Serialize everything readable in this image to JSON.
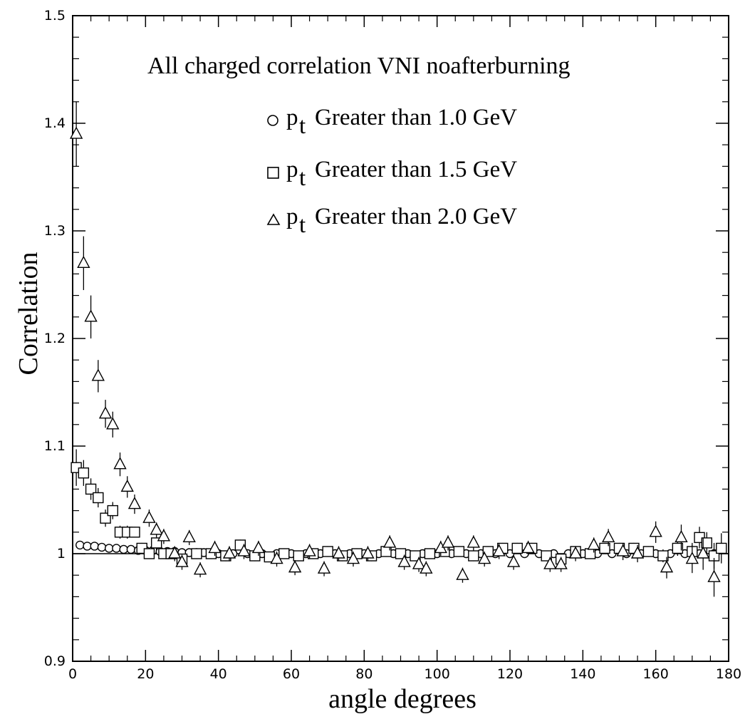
{
  "chart_data": {
    "type": "scatter",
    "title": "All charged correlation VNI noafterburning",
    "xlabel": "angle degrees",
    "ylabel": "Correlation",
    "xlim": [
      0,
      180
    ],
    "ylim": [
      0.9,
      1.5
    ],
    "x_ticks": [
      "0",
      "20",
      "40",
      "60",
      "80",
      "100",
      "120",
      "140",
      "160",
      "180"
    ],
    "y_ticks": [
      "0.9",
      "1",
      "1.1",
      "1.2",
      "1.3",
      "1.4",
      "1.5"
    ],
    "reference_line_y": 1.0,
    "grid": false,
    "legend_position": "top-right",
    "series": [
      {
        "name": "Greater than 1.0 GeV",
        "legend_prefix": "p",
        "legend_subscript": "t",
        "marker": "circle",
        "points": [
          [
            2,
            1.008
          ],
          [
            4,
            1.007
          ],
          [
            6,
            1.007
          ],
          [
            8,
            1.006
          ],
          [
            10,
            1.005
          ],
          [
            12,
            1.005
          ],
          [
            14,
            1.004
          ],
          [
            16,
            1.004
          ],
          [
            18,
            1.003
          ],
          [
            20,
            1.003
          ],
          [
            22,
            1.003
          ],
          [
            24,
            1.002
          ],
          [
            26,
            1.002
          ],
          [
            28,
            1.002
          ],
          [
            30,
            1.001
          ],
          [
            32,
            1.001
          ],
          [
            34,
            1.001
          ],
          [
            36,
            1.001
          ],
          [
            38,
            1.0
          ],
          [
            40,
            1.0
          ],
          [
            44,
            1.0
          ],
          [
            48,
            1.0
          ],
          [
            52,
            1.0
          ],
          [
            56,
            1.0
          ],
          [
            60,
            1.0
          ],
          [
            64,
            1.0
          ],
          [
            68,
            1.0
          ],
          [
            72,
            1.0
          ],
          [
            76,
            1.0
          ],
          [
            80,
            1.0
          ],
          [
            84,
            1.0
          ],
          [
            88,
            1.0
          ],
          [
            92,
            1.0
          ],
          [
            96,
            1.0
          ],
          [
            100,
            1.0
          ],
          [
            104,
            1.0
          ],
          [
            108,
            1.0
          ],
          [
            112,
            1.0
          ],
          [
            116,
            1.0
          ],
          [
            120,
            1.0
          ],
          [
            124,
            1.0
          ],
          [
            128,
            1.0
          ],
          [
            132,
            1.0
          ],
          [
            136,
            1.0
          ],
          [
            140,
            1.0
          ],
          [
            144,
            1.0
          ],
          [
            148,
            1.0
          ],
          [
            152,
            1.0
          ],
          [
            156,
            1.0
          ],
          [
            160,
            1.0
          ],
          [
            164,
            1.0
          ],
          [
            168,
            1.0
          ],
          [
            172,
            1.0
          ],
          [
            176,
            1.0
          ]
        ]
      },
      {
        "name": "Greater than 1.5 GeV",
        "legend_prefix": "p",
        "legend_subscript": "t",
        "marker": "square",
        "points": [
          [
            1,
            1.08,
            0.017
          ],
          [
            3,
            1.075,
            0.012
          ],
          [
            5,
            1.06,
            0.01
          ],
          [
            7,
            1.052,
            0.009
          ],
          [
            9,
            1.033,
            0.008
          ],
          [
            11,
            1.04,
            0.008
          ],
          [
            13,
            1.02,
            0.006
          ],
          [
            15,
            1.02,
            0.006
          ],
          [
            17,
            1.02,
            0.005
          ],
          [
            19,
            1.005,
            0.005
          ],
          [
            21,
            1.0,
            0.005
          ],
          [
            23,
            1.01,
            0.005
          ],
          [
            25,
            1.0,
            0.005
          ],
          [
            27,
            1.0,
            0.005
          ],
          [
            30,
            0.995,
            0.005
          ],
          [
            34,
            1.0,
            0.005
          ],
          [
            38,
            1.0,
            0.005
          ],
          [
            42,
            0.998,
            0.005
          ],
          [
            46,
            1.008,
            0.005
          ],
          [
            50,
            0.998,
            0.005
          ],
          [
            54,
            0.997,
            0.005
          ],
          [
            58,
            1.0,
            0.005
          ],
          [
            62,
            0.998,
            0.005
          ],
          [
            66,
            1.0,
            0.005
          ],
          [
            70,
            1.002,
            0.005
          ],
          [
            74,
            0.998,
            0.005
          ],
          [
            78,
            1.0,
            0.005
          ],
          [
            82,
            0.998,
            0.005
          ],
          [
            86,
            1.002,
            0.005
          ],
          [
            90,
            1.0,
            0.005
          ],
          [
            94,
            0.998,
            0.005
          ],
          [
            98,
            1.0,
            0.005
          ],
          [
            102,
            1.002,
            0.005
          ],
          [
            106,
            1.002,
            0.005
          ],
          [
            110,
            0.998,
            0.005
          ],
          [
            114,
            1.002,
            0.005
          ],
          [
            118,
            1.005,
            0.005
          ],
          [
            122,
            1.005,
            0.005
          ],
          [
            126,
            1.005,
            0.005
          ],
          [
            130,
            0.998,
            0.005
          ],
          [
            134,
            0.995,
            0.005
          ],
          [
            138,
            1.002,
            0.005
          ],
          [
            142,
            1.0,
            0.005
          ],
          [
            146,
            1.005,
            0.005
          ],
          [
            150,
            1.005,
            0.005
          ],
          [
            154,
            1.005,
            0.005
          ],
          [
            158,
            1.002,
            0.005
          ],
          [
            162,
            0.998,
            0.006
          ],
          [
            166,
            1.005,
            0.007
          ],
          [
            170,
            1.002,
            0.008
          ],
          [
            172,
            1.015,
            0.01
          ],
          [
            174,
            1.01,
            0.01
          ],
          [
            176,
            0.998,
            0.012
          ],
          [
            178,
            1.005,
            0.014
          ]
        ]
      },
      {
        "name": "Greater than 2.0 GeV",
        "legend_prefix": "p",
        "legend_subscript": "t",
        "marker": "triangle",
        "points": [
          [
            1,
            1.39,
            0.03
          ],
          [
            3,
            1.27,
            0.025
          ],
          [
            5,
            1.22,
            0.02
          ],
          [
            7,
            1.165,
            0.015
          ],
          [
            9,
            1.13,
            0.013
          ],
          [
            11,
            1.12,
            0.012
          ],
          [
            13,
            1.083,
            0.011
          ],
          [
            15,
            1.062,
            0.01
          ],
          [
            17,
            1.046,
            0.009
          ],
          [
            21,
            1.033,
            0.008
          ],
          [
            23,
            1.022,
            0.007
          ],
          [
            25,
            1.016,
            0.007
          ],
          [
            28,
            1.0,
            0.007
          ],
          [
            30,
            0.992,
            0.007
          ],
          [
            32,
            1.015,
            0.007
          ],
          [
            35,
            0.985,
            0.007
          ],
          [
            39,
            1.005,
            0.007
          ],
          [
            43,
            1.0,
            0.007
          ],
          [
            47,
            1.002,
            0.007
          ],
          [
            51,
            1.005,
            0.007
          ],
          [
            56,
            0.995,
            0.007
          ],
          [
            61,
            0.987,
            0.007
          ],
          [
            65,
            1.002,
            0.007
          ],
          [
            69,
            0.986,
            0.007
          ],
          [
            73,
            1.0,
            0.007
          ],
          [
            77,
            0.995,
            0.007
          ],
          [
            81,
            1.0,
            0.007
          ],
          [
            87,
            1.01,
            0.007
          ],
          [
            91,
            0.992,
            0.007
          ],
          [
            95,
            0.99,
            0.007
          ],
          [
            97,
            0.986,
            0.007
          ],
          [
            101,
            1.005,
            0.007
          ],
          [
            103,
            1.01,
            0.007
          ],
          [
            107,
            0.98,
            0.007
          ],
          [
            110,
            1.01,
            0.007
          ],
          [
            113,
            0.995,
            0.007
          ],
          [
            117,
            1.002,
            0.007
          ],
          [
            121,
            0.992,
            0.007
          ],
          [
            125,
            1.005,
            0.007
          ],
          [
            131,
            0.99,
            0.007
          ],
          [
            134,
            0.99,
            0.007
          ],
          [
            138,
            1.0,
            0.007
          ],
          [
            143,
            1.008,
            0.007
          ],
          [
            147,
            1.015,
            0.008
          ],
          [
            151,
            1.002,
            0.008
          ],
          [
            155,
            1.0,
            0.008
          ],
          [
            160,
            1.02,
            0.01
          ],
          [
            163,
            0.987,
            0.01
          ],
          [
            167,
            1.015,
            0.012
          ],
          [
            170,
            0.995,
            0.013
          ],
          [
            173,
            1.0,
            0.015
          ],
          [
            176,
            0.978,
            0.018
          ]
        ]
      }
    ]
  }
}
